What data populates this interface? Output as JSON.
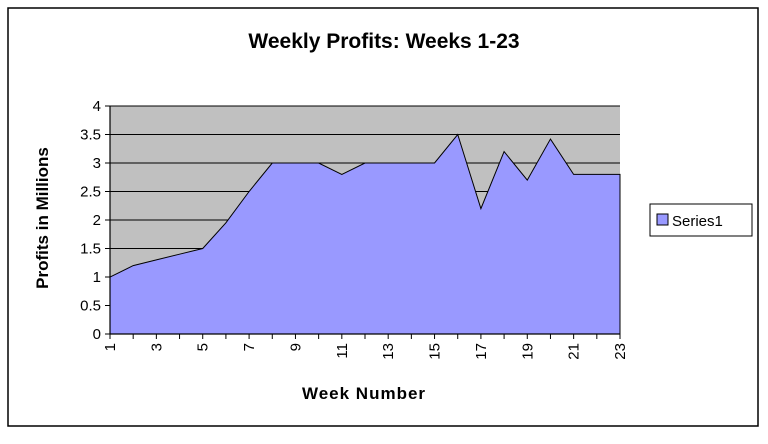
{
  "colors": {
    "plot_background": "#c0c0c0",
    "series_fill": "#9999ff",
    "gridline": "#000000",
    "outer_border": "#000000"
  },
  "chart_data": {
    "type": "area",
    "title": "Weekly Profits: Weeks 1-23",
    "xlabel": "Week Number",
    "ylabel": "Profits in Millions",
    "x": [
      1,
      2,
      3,
      4,
      5,
      6,
      7,
      8,
      9,
      10,
      11,
      12,
      13,
      14,
      15,
      16,
      17,
      18,
      19,
      20,
      21,
      22,
      23
    ],
    "x_tick_labels": [
      "1",
      "3",
      "5",
      "7",
      "9",
      "11",
      "13",
      "15",
      "17",
      "19",
      "21",
      "23"
    ],
    "y_tick_labels": [
      "0",
      "0.5",
      "1",
      "1.5",
      "2",
      "2.5",
      "3",
      "3.5",
      "4"
    ],
    "ylim": [
      0,
      4
    ],
    "grid": true,
    "legend": "right",
    "series": [
      {
        "name": "Series1",
        "values": [
          1.0,
          1.2,
          1.3,
          1.4,
          1.5,
          1.95,
          2.5,
          3.0,
          3.0,
          3.0,
          2.8,
          3.0,
          3.0,
          3.0,
          3.0,
          3.5,
          2.2,
          3.2,
          2.7,
          3.42,
          2.8,
          2.8,
          2.8
        ]
      }
    ]
  }
}
